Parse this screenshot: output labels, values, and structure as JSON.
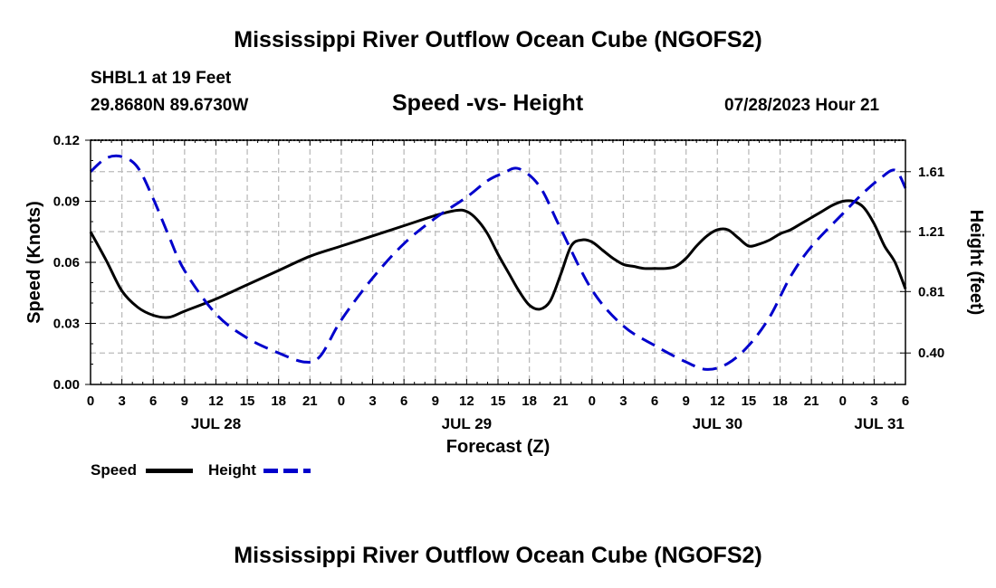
{
  "header": {
    "title": "Mississippi River Outflow Ocean Cube (NGOFS2)",
    "station": "SHBL1 at 19 Feet",
    "coords": "29.8680N  89.6730W",
    "plot_title": "Speed -vs- Height",
    "datetime": "07/28/2023 Hour 21"
  },
  "footer": {
    "title": "Mississippi River Outflow Ocean Cube (NGOFS2)"
  },
  "legend": {
    "speed_label": "Speed",
    "height_label": "Height",
    "speed_color": "#000000",
    "height_color": "#0000cc"
  },
  "chart_data": {
    "type": "line",
    "title": "Speed -vs- Height",
    "xlabel": "Forecast (Z)",
    "ylabel": "Speed (Knots)",
    "y2label": "Height (feet)",
    "x_unit": "hours from 2023-07-28 00Z",
    "xlim": [
      0,
      78
    ],
    "ylim": [
      0,
      0.12
    ],
    "y2lim": [
      0.19,
      1.82
    ],
    "x_ticks": [
      0,
      3,
      6,
      9,
      12,
      15,
      18,
      21,
      24,
      27,
      30,
      33,
      36,
      39,
      42,
      45,
      48,
      51,
      54,
      57,
      60,
      63,
      66,
      69,
      72,
      75,
      78
    ],
    "x_tick_labels": [
      "0",
      "3",
      "6",
      "9",
      "12",
      "15",
      "18",
      "21",
      "0",
      "3",
      "6",
      "9",
      "12",
      "15",
      "18",
      "21",
      "0",
      "3",
      "6",
      "9",
      "12",
      "15",
      "18",
      "21",
      "0",
      "3",
      "6"
    ],
    "date_labels": [
      {
        "x": 12,
        "label": "JUL 28"
      },
      {
        "x": 36,
        "label": "JUL 29"
      },
      {
        "x": 60,
        "label": "JUL 30"
      },
      {
        "x": 75.5,
        "label": "JUL 31"
      }
    ],
    "y_ticks": [
      0,
      0.03,
      0.06,
      0.09,
      0.12
    ],
    "y_tick_labels": [
      "0.00",
      "0.03",
      "0.06",
      "0.09",
      "0.12"
    ],
    "y2_ticks": [
      0.4,
      0.81,
      1.21,
      1.61
    ],
    "y2_tick_labels": [
      "0.40",
      "0.81",
      "1.21",
      "1.61"
    ],
    "grid": true,
    "series": [
      {
        "name": "Speed",
        "axis": "left",
        "style": "solid",
        "color": "#000000",
        "x": [
          0,
          1.5,
          3,
          4.5,
          6,
          7.5,
          9,
          12,
          15,
          18,
          21,
          24,
          27,
          30,
          33,
          35,
          36,
          37,
          38,
          39,
          40,
          41,
          42,
          43,
          44,
          45,
          46,
          47,
          48,
          49,
          50,
          51,
          52,
          53,
          54,
          55,
          56,
          57,
          58,
          59,
          60,
          61,
          62,
          63,
          64,
          65,
          66,
          67,
          68,
          69,
          70,
          71,
          72,
          73,
          74,
          75,
          76,
          77,
          78
        ],
        "y": [
          0.075,
          0.061,
          0.046,
          0.038,
          0.034,
          0.033,
          0.036,
          0.042,
          0.049,
          0.056,
          0.063,
          0.068,
          0.073,
          0.078,
          0.083,
          0.0855,
          0.085,
          0.081,
          0.074,
          0.064,
          0.055,
          0.046,
          0.039,
          0.037,
          0.041,
          0.054,
          0.068,
          0.071,
          0.07,
          0.066,
          0.062,
          0.059,
          0.058,
          0.057,
          0.057,
          0.057,
          0.058,
          0.062,
          0.068,
          0.073,
          0.076,
          0.076,
          0.072,
          0.068,
          0.069,
          0.071,
          0.074,
          0.076,
          0.079,
          0.082,
          0.085,
          0.088,
          0.09,
          0.09,
          0.087,
          0.079,
          0.068,
          0.06,
          0.047
        ]
      },
      {
        "name": "Height",
        "axis": "right",
        "style": "dashed",
        "color": "#0000cc",
        "x": [
          0,
          1.5,
          3,
          4.5,
          6,
          7.5,
          9,
          12,
          15,
          18,
          20.5,
          22,
          24,
          27,
          30,
          33,
          36,
          38,
          39.5,
          41,
          43,
          45,
          48,
          51,
          54,
          57,
          59,
          61,
          63,
          65,
          67,
          69,
          72,
          74,
          75.5,
          77,
          78
        ],
        "y": [
          1.61,
          1.7,
          1.71,
          1.64,
          1.43,
          1.18,
          0.95,
          0.66,
          0.5,
          0.4,
          0.34,
          0.38,
          0.62,
          0.9,
          1.13,
          1.3,
          1.44,
          1.55,
          1.6,
          1.63,
          1.51,
          1.23,
          0.82,
          0.58,
          0.45,
          0.34,
          0.29,
          0.33,
          0.45,
          0.64,
          0.91,
          1.11,
          1.33,
          1.47,
          1.56,
          1.62,
          1.5
        ]
      }
    ]
  }
}
